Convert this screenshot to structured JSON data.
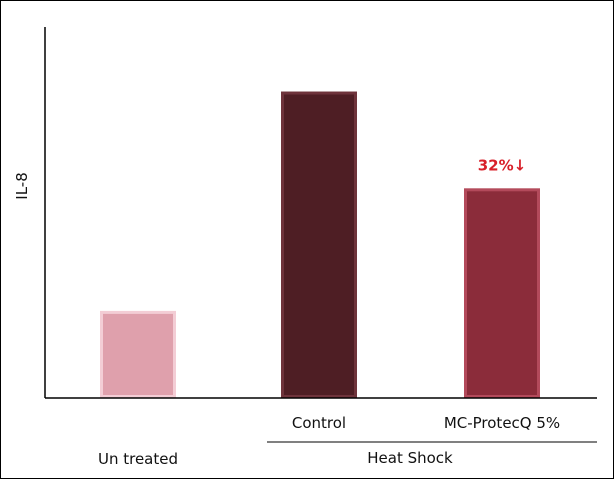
{
  "chart_data": {
    "type": "bar",
    "title": "",
    "xlabel": "",
    "ylabel": "IL-8",
    "categories": [
      "Un treated",
      "Control",
      "MC-ProtecQ 5%"
    ],
    "values": [
      27,
      95,
      65
    ],
    "ylim": [
      0,
      115
    ],
    "grid": false,
    "legend": "none",
    "group_label": {
      "text": "Heat Shock",
      "categories": [
        "Control",
        "MC-ProtecQ 5%"
      ]
    },
    "annotations": [
      {
        "category": "MC-ProtecQ 5%",
        "text": "32%↓",
        "color": "#d8202a"
      }
    ],
    "bar_colors": [
      "#dfa0ac",
      "#4e1e24",
      "#8b2c3a"
    ],
    "bar_edge_colors": [
      "#f3cdd5",
      "#6e333b",
      "#b34a5b"
    ]
  }
}
